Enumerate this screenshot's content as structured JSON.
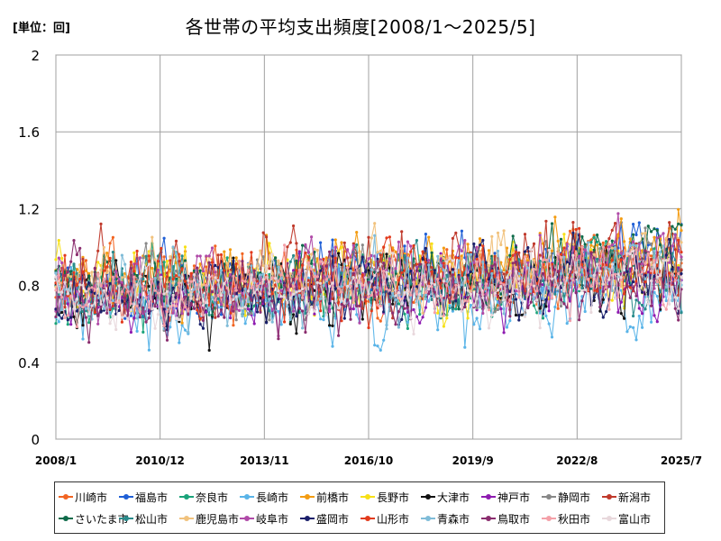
{
  "unit_label": "[単位：回]",
  "chart_data": {
    "type": "line",
    "title": "各世帯の平均支出頻度[2008/1～2025/5]",
    "xlabel": "",
    "ylabel": "",
    "x_range": [
      "2008/1",
      "2025/7"
    ],
    "x_ticks": [
      "2008/1",
      "2010/12",
      "2013/11",
      "2016/10",
      "2019/9",
      "2022/8",
      "2025/7"
    ],
    "y_ticks": [
      "0",
      "0.4",
      "0.8",
      "1.2",
      "1.6",
      "2"
    ],
    "ylim": [
      0,
      2
    ],
    "grid": true,
    "legend_position": "bottom",
    "series": [
      {
        "name": "川崎市",
        "color": "#f26522",
        "base": 0.78,
        "amp": 0.22,
        "trend": 0.08
      },
      {
        "name": "福島市",
        "color": "#1f5fd6",
        "base": 0.8,
        "amp": 0.22,
        "trend": 0.12
      },
      {
        "name": "奈良市",
        "color": "#1aa37a",
        "base": 0.76,
        "amp": 0.2,
        "trend": 0.06
      },
      {
        "name": "長崎市",
        "color": "#5ab4e8",
        "base": 0.7,
        "amp": 0.22,
        "trend": 0.05
      },
      {
        "name": "前橋市",
        "color": "#f39c12",
        "base": 0.84,
        "amp": 0.22,
        "trend": 0.1
      },
      {
        "name": "長野市",
        "color": "#f7e017",
        "base": 0.8,
        "amp": 0.2,
        "trend": 0.06
      },
      {
        "name": "大津市",
        "color": "#111111",
        "base": 0.72,
        "amp": 0.22,
        "trend": 0.1
      },
      {
        "name": "神戸市",
        "color": "#8e1bb0",
        "base": 0.74,
        "amp": 0.2,
        "trend": 0.06
      },
      {
        "name": "静岡市",
        "color": "#888888",
        "base": 0.8,
        "amp": 0.2,
        "trend": 0.06
      },
      {
        "name": "新潟市",
        "color": "#c0392b",
        "base": 0.82,
        "amp": 0.22,
        "trend": 0.1
      },
      {
        "name": "さいたま市",
        "color": "#0e6b4a",
        "base": 0.8,
        "amp": 0.2,
        "trend": 0.1
      },
      {
        "name": "松山市",
        "color": "#2a8b8b",
        "base": 0.78,
        "amp": 0.2,
        "trend": 0.06
      },
      {
        "name": "鹿児島市",
        "color": "#f1c27d",
        "base": 0.84,
        "amp": 0.22,
        "trend": 0.06
      },
      {
        "name": "岐阜市",
        "color": "#b04aa8",
        "base": 0.78,
        "amp": 0.22,
        "trend": 0.12
      },
      {
        "name": "盛岡市",
        "color": "#1a1f6b",
        "base": 0.76,
        "amp": 0.2,
        "trend": 0.08
      },
      {
        "name": "山形市",
        "color": "#e23b1d",
        "base": 0.8,
        "amp": 0.2,
        "trend": 0.08
      },
      {
        "name": "青森市",
        "color": "#7fbcd8",
        "base": 0.74,
        "amp": 0.22,
        "trend": 0.1
      },
      {
        "name": "鳥取市",
        "color": "#8a2d6e",
        "base": 0.74,
        "amp": 0.2,
        "trend": 0.06
      },
      {
        "name": "秋田市",
        "color": "#f4a0a8",
        "base": 0.78,
        "amp": 0.18,
        "trend": 0.06
      },
      {
        "name": "富山市",
        "color": "#e8d8dc",
        "base": 0.76,
        "amp": 0.18,
        "trend": 0.06
      }
    ],
    "n_points": 209
  }
}
